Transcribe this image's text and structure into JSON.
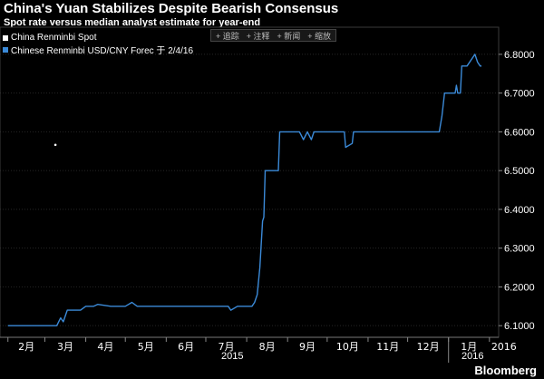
{
  "header": {
    "title": "China's Yuan Stabilizes Despite Bearish Consensus",
    "subtitle": "Spot rate versus median analyst estimate for year-end"
  },
  "toolbar": {
    "items": [
      "+ 追踪",
      "+ 注释",
      "+ 新闻",
      "+ 缩放"
    ]
  },
  "footer": {
    "brand": "Bloomberg"
  },
  "chart_data": {
    "type": "line",
    "title": "China's Yuan Stabilizes Despite Bearish Consensus",
    "subtitle": "Spot rate versus median analyst estimate for year-end",
    "xlabel": "",
    "ylabel": "",
    "ylim": [
      6.07,
      6.87
    ],
    "x_ticks": [
      "2月",
      "3月",
      "4月",
      "5月",
      "6月",
      "7月",
      "8月",
      "9月",
      "10月",
      "11月",
      "12月",
      "1月",
      "2016"
    ],
    "y_ticks": [
      "6.1000",
      "6.2000",
      "6.3000",
      "6.4000",
      "6.5000",
      "6.6000",
      "6.7000",
      "6.8000"
    ],
    "year_labels": [
      "2015",
      "2016"
    ],
    "grid": true,
    "legend_position": "top-left",
    "series": [
      {
        "name": "China Renminbi Spot",
        "color": "#ffffff",
        "values": [
          [
            "2015-03-09",
            6.5665
          ],
          [
            "2015-03-10",
            6.5665
          ]
        ]
      },
      {
        "name": "Chinese Renminbi USD/CNY Forec 于 2/4/16",
        "color": "#3b8ad8",
        "values": [
          [
            "2015-02-01",
            6.1
          ],
          [
            "2015-03-10",
            6.1
          ],
          [
            "2015-03-13",
            6.12
          ],
          [
            "2015-03-15",
            6.11
          ],
          [
            "2015-03-18",
            6.14
          ],
          [
            "2015-03-28",
            6.14
          ],
          [
            "2015-04-01",
            6.15
          ],
          [
            "2015-04-07",
            6.15
          ],
          [
            "2015-04-10",
            6.155
          ],
          [
            "2015-04-20",
            6.15
          ],
          [
            "2015-05-01",
            6.15
          ],
          [
            "2015-05-06",
            6.16
          ],
          [
            "2015-05-10",
            6.15
          ],
          [
            "2015-06-01",
            6.15
          ],
          [
            "2015-07-01",
            6.15
          ],
          [
            "2015-07-18",
            6.15
          ],
          [
            "2015-07-20",
            6.14
          ],
          [
            "2015-07-25",
            6.15
          ],
          [
            "2015-08-05",
            6.15
          ],
          [
            "2015-08-07",
            6.16
          ],
          [
            "2015-08-09",
            6.18
          ],
          [
            "2015-08-11",
            6.25
          ],
          [
            "2015-08-13",
            6.37
          ],
          [
            "2015-08-14",
            6.38
          ],
          [
            "2015-08-15",
            6.5
          ],
          [
            "2015-08-25",
            6.5
          ],
          [
            "2015-08-26",
            6.6
          ],
          [
            "2015-09-10",
            6.6
          ],
          [
            "2015-09-13",
            6.58
          ],
          [
            "2015-09-16",
            6.6
          ],
          [
            "2015-09-19",
            6.58
          ],
          [
            "2015-09-21",
            6.6
          ],
          [
            "2015-10-01",
            6.6
          ],
          [
            "2015-10-14",
            6.6
          ],
          [
            "2015-10-15",
            6.56
          ],
          [
            "2015-10-20",
            6.57
          ],
          [
            "2015-10-21",
            6.6
          ],
          [
            "2015-11-01",
            6.6
          ],
          [
            "2015-12-01",
            6.6
          ],
          [
            "2015-12-25",
            6.6
          ],
          [
            "2015-12-27",
            6.64
          ],
          [
            "2015-12-29",
            6.7
          ],
          [
            "2016-01-06",
            6.7
          ],
          [
            "2016-01-07",
            6.72
          ],
          [
            "2016-01-08",
            6.7
          ],
          [
            "2016-01-10",
            6.7
          ],
          [
            "2016-01-11",
            6.77
          ],
          [
            "2016-01-15",
            6.77
          ],
          [
            "2016-01-21",
            6.8
          ],
          [
            "2016-01-23",
            6.78
          ],
          [
            "2016-01-25",
            6.77
          ],
          [
            "2016-01-26",
            6.77
          ]
        ]
      }
    ]
  }
}
